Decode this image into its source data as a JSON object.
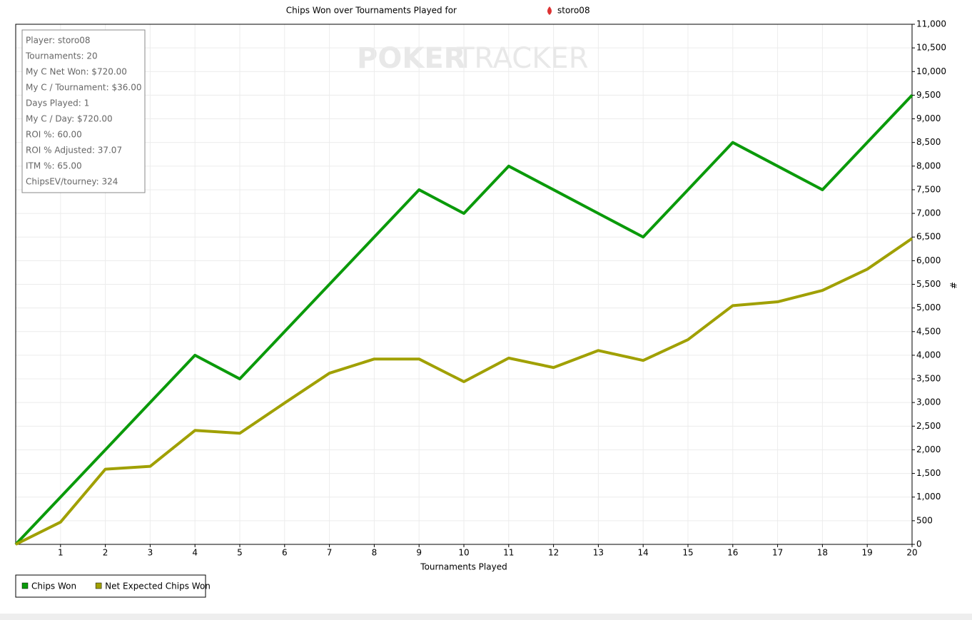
{
  "chart_data": {
    "type": "line",
    "title": "Chips Won over Tournaments Played for",
    "title_player": "storo08",
    "watermark": [
      "POKER",
      "TRACKER"
    ],
    "info": [
      "Player: storo08",
      "Tournaments: 20",
      "My C Net Won: $720.00",
      "My C / Tournament: $36.00",
      "Days Played: 1",
      "My C / Day: $720.00",
      "ROI %: 60.00",
      "ROI % Adjusted: 37.07",
      "ITM %: 65.00",
      "ChipsEV/tourney: 324"
    ],
    "x_label": "Tournaments Played",
    "y_label": "#",
    "x": [
      0,
      1,
      2,
      3,
      4,
      5,
      6,
      7,
      8,
      9,
      10,
      11,
      12,
      13,
      14,
      15,
      16,
      17,
      18,
      19,
      20
    ],
    "series": [
      {
        "name": "Chips Won",
        "color": "#0a9a0a",
        "values": [
          0,
          1000,
          2000,
          3000,
          4000,
          3500,
          4500,
          5500,
          6500,
          7500,
          7000,
          8000,
          7500,
          7000,
          6500,
          7500,
          8500,
          8000,
          7500,
          8500,
          9500
        ]
      },
      {
        "name": "Net Expected Chips Won",
        "color": "#a0a000",
        "values": [
          0,
          470,
          1590,
          1650,
          2410,
          2350,
          2990,
          3620,
          3920,
          3920,
          3440,
          3940,
          3740,
          4100,
          3890,
          4330,
          5050,
          5130,
          5370,
          5820,
          6470
        ]
      }
    ],
    "xlim": [
      0,
      20
    ],
    "xticks": [
      1,
      2,
      3,
      4,
      5,
      6,
      7,
      8,
      9,
      10,
      11,
      12,
      13,
      14,
      15,
      16,
      17,
      18,
      19,
      20
    ],
    "ylim": [
      0,
      11000
    ],
    "yticks": [
      0,
      500,
      {
        "value": 1000,
        "label": "1,000"
      },
      {
        "value": 1500,
        "label": "1,500"
      },
      {
        "value": 2000,
        "label": "2,000"
      },
      {
        "value": 2500,
        "label": "2,500"
      },
      {
        "value": 3000,
        "label": "3,000"
      },
      {
        "value": 3500,
        "label": "3,500"
      },
      {
        "value": 4000,
        "label": "4,000"
      },
      {
        "value": 4500,
        "label": "4,500"
      },
      {
        "value": 5000,
        "label": "5,000"
      },
      {
        "value": 5500,
        "label": "5,500"
      },
      {
        "value": 6000,
        "label": "6,000"
      },
      {
        "value": 6500,
        "label": "6,500"
      },
      {
        "value": 7000,
        "label": "7,000"
      },
      {
        "value": 7500,
        "label": "7,500"
      },
      {
        "value": 8000,
        "label": "8,000"
      },
      {
        "value": 8500,
        "label": "8,500"
      },
      {
        "value": 9000,
        "label": "9,000"
      },
      {
        "value": 9500,
        "label": "9,500"
      },
      {
        "value": 10000,
        "label": "10,000"
      },
      {
        "value": 10500,
        "label": "10,500"
      },
      {
        "value": 11000,
        "label": "11,000"
      }
    ],
    "grid": true,
    "y_axis_side": "right",
    "legend": "bottom-left"
  }
}
